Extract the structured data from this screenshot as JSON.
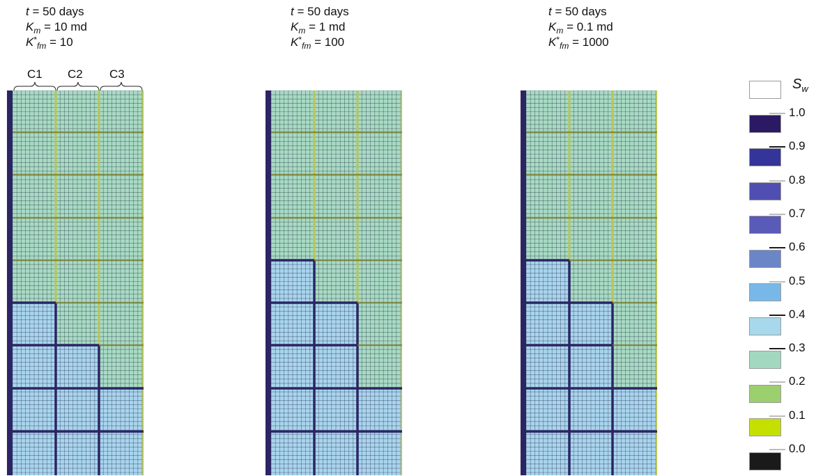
{
  "panels": [
    {
      "t_label": "t",
      "t_value": " = 50 days",
      "k_label": "K",
      "k_sub": "m",
      "k_value": " = 10 md",
      "kf_label": "K",
      "kf_sup": "*",
      "kf_sub": "fm",
      "kf_value": " = 10"
    },
    {
      "t_label": "t",
      "t_value": " = 50 days",
      "k_label": "K",
      "k_sub": "m",
      "k_value": " = 1 md",
      "kf_label": "K",
      "kf_sup": "*",
      "kf_sub": "fm",
      "kf_value": " = 100"
    },
    {
      "t_label": "t",
      "t_value": " = 50 days",
      "k_label": "K",
      "k_sub": "m",
      "k_value": " = 0.1 md",
      "kf_label": "K",
      "kf_sup": "*",
      "kf_sub": "fm",
      "kf_value": " = 1000"
    }
  ],
  "columns": [
    "C1",
    "C2",
    "C3"
  ],
  "legend": {
    "title": "S",
    "title_sub": "w",
    "ticks": [
      "1.0",
      "0.9",
      "0.8",
      "0.7",
      "0.6",
      "0.5",
      "0.4",
      "0.3",
      "0.2",
      "0.1",
      "0.0"
    ],
    "swatch_colors": [
      "#ffffff",
      "#2b1a63",
      "#34349a",
      "#4f4fb2",
      "#5a5ab8",
      "#6b86c7",
      "#78b8e8",
      "#a8d8ec",
      "#a3d8c0",
      "#9ccf6d",
      "#c5e000",
      "#1a1a1a"
    ],
    "tick_colors": [
      "#bdbdbd",
      "#1a1a1a",
      "#bdbdbd",
      "#bdbdbd",
      "#1a1a1a",
      "#bdbdbd",
      "#1a1a1a",
      "#1a1a1a",
      "#bdbdbd",
      "#bdbdbd",
      "#bdbdbd"
    ]
  },
  "colors": {
    "water": "#a9d5ee",
    "water_dark": "#8cc4e6",
    "oil": "#a8dbc4",
    "fracture_yellow": "#b8c458",
    "fracture_olive": "#7a7a2a",
    "fracture_water": "#2b2563"
  }
}
